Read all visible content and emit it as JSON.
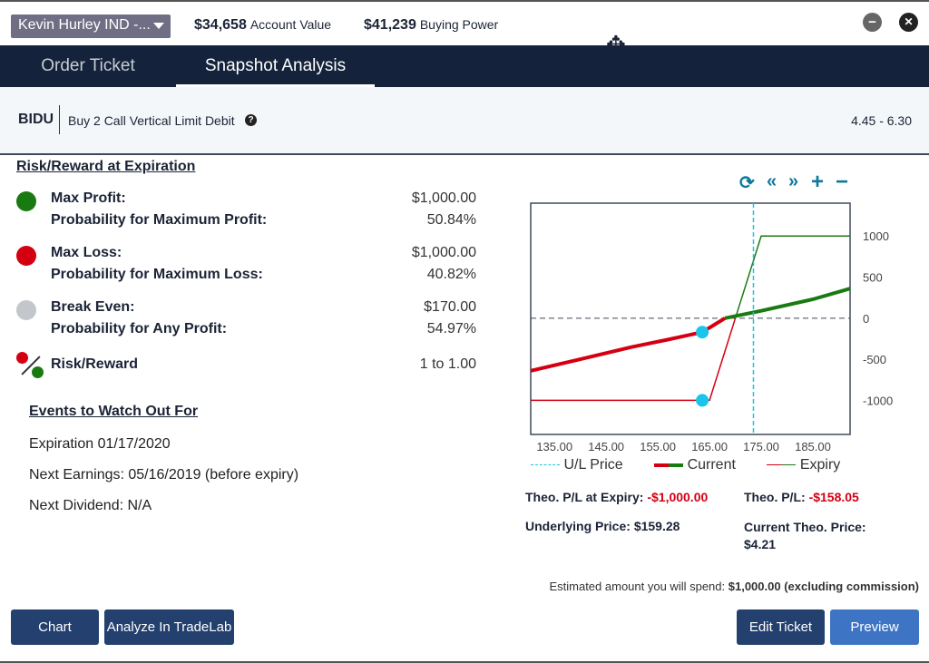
{
  "header": {
    "account": "Kevin Hurley IND -...",
    "account_value": "$34,658",
    "account_value_label": "Account Value",
    "buying_power": "$41,239",
    "buying_power_label": "Buying Power",
    "minimize": "−",
    "close": "✕"
  },
  "tabs": [
    {
      "label": "Order Ticket",
      "active": false
    },
    {
      "label": "Snapshot Analysis",
      "active": true
    }
  ],
  "order": {
    "symbol": "BIDU",
    "description": "Buy 2 Call Vertical Limit Debit",
    "help": "?",
    "price_range": "4.45 - 6.30"
  },
  "risk": {
    "title": "Risk/Reward at Expiration",
    "max_profit_label": "Max Profit:",
    "max_profit": "$1,000.00",
    "prob_max_profit_label": "Probability for Maximum Profit:",
    "prob_max_profit": "50.84%",
    "max_loss_label": "Max Loss:",
    "max_loss": "$1,000.00",
    "prob_max_loss_label": "Probability for Maximum Loss:",
    "prob_max_loss": "40.82%",
    "break_even_label": "Break Even:",
    "break_even": "$170.00",
    "prob_any_profit_label": "Probability for Any Profit:",
    "prob_any_profit": "54.97%",
    "risk_reward_label": "Risk/Reward",
    "risk_reward": "1 to 1.00"
  },
  "events": {
    "title": "Events to Watch Out For",
    "expiration": "Expiration 01/17/2020",
    "earnings": "Next Earnings: 05/16/2019 (before expiry)",
    "dividend": "Next Dividend: N/A"
  },
  "chart_controls": {
    "refresh": "⟳",
    "left": "«",
    "right": "»",
    "zoom_in": "+",
    "zoom_out": "−"
  },
  "chart_data": {
    "type": "line",
    "xlim": [
      130.4,
      192.2
    ],
    "ylim": [
      -1415,
      1400
    ],
    "x_ticks": [
      "135.00",
      "145.00",
      "155.00",
      "165.00",
      "175.00",
      "185.00"
    ],
    "x_tick_values": [
      135,
      145,
      155,
      165,
      175,
      185
    ],
    "y_ticks": [
      "1000",
      "500",
      "0",
      "-500",
      "-1000"
    ],
    "y_tick_values": [
      1000,
      500,
      0,
      -500,
      -1000
    ],
    "ul_price": 173.5,
    "series": [
      {
        "name": "Current",
        "points": [
          [
            130.4,
            -640
          ],
          [
            140,
            -500
          ],
          [
            150,
            -350
          ],
          [
            157,
            -260
          ],
          [
            163.6,
            -170
          ],
          [
            168,
            0
          ],
          [
            175,
            90
          ],
          [
            185,
            230
          ],
          [
            192.2,
            360
          ]
        ]
      },
      {
        "name": "Expiry",
        "points": [
          [
            130.4,
            -1000
          ],
          [
            165,
            -1000
          ],
          [
            170,
            0
          ],
          [
            175,
            1000
          ],
          [
            192.2,
            1000
          ]
        ]
      }
    ],
    "markers": [
      [
        163.6,
        -170
      ],
      [
        163.6,
        -1000
      ]
    ],
    "legend": [
      "U/L Price",
      "Current",
      "Expiry"
    ],
    "colors": {
      "loss": "#d40012",
      "profit": "#1a7a12",
      "ul": "#19c4e6",
      "marker": "#1bc4ea"
    }
  },
  "summary": {
    "theo_expiry_label": "Theo. P/L at Expiry:",
    "theo_expiry": "-$1,000.00",
    "theo_pl_label": "Theo. P/L:",
    "theo_pl": "-$158.05",
    "underlying_label": "Underlying Price:",
    "underlying": "$159.28",
    "current_theo_label": "Current Theo. Price:",
    "current_theo": "$4.21"
  },
  "estimate": {
    "label": "Estimated amount you will spend:",
    "amount": "$1,000.00 (excluding commission)"
  },
  "buttons": {
    "chart": "Chart",
    "analyze": "Analyze In TradeLab",
    "edit": "Edit Ticket",
    "preview": "Preview"
  }
}
